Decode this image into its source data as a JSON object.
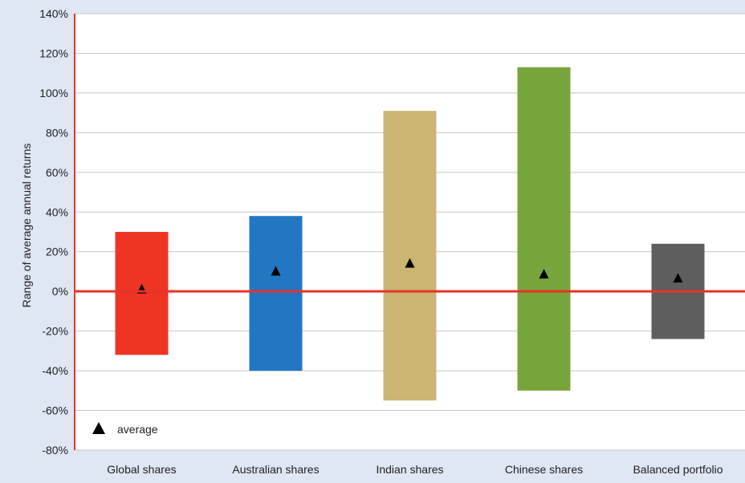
{
  "chart_data": {
    "type": "bar",
    "title": "",
    "xlabel": "",
    "ylabel": "Range of average annual returns",
    "ylim": [
      -80,
      140
    ],
    "yticks": [
      -80,
      -60,
      -40,
      -20,
      0,
      20,
      40,
      60,
      80,
      100,
      120,
      140
    ],
    "tick_suffix": "%",
    "grid": true,
    "legend": {
      "position": "bottom-left",
      "label": "average"
    },
    "categories": [
      "Global shares",
      "Australian shares",
      "Indian shares",
      "Chinese shares",
      "Balanced portfolio"
    ],
    "series": [
      {
        "low": -32,
        "high": 30,
        "average": 1,
        "color": "#ee3524"
      },
      {
        "low": -40,
        "high": 38,
        "average": 10,
        "color": "#2376c2"
      },
      {
        "low": -55,
        "high": 91,
        "average": 14,
        "color": "#cbb572"
      },
      {
        "low": -50,
        "high": 113,
        "average": 8.5,
        "color": "#78a43c"
      },
      {
        "low": -24,
        "high": 24,
        "average": 6.5,
        "color": "#5e5e5e"
      }
    ],
    "colors": {
      "axis": "#e8332a",
      "grid": "#c8c8c8",
      "plot_bg": "#ffffff",
      "frame_bg": "#dfe6f4",
      "marker": "#000000"
    }
  }
}
